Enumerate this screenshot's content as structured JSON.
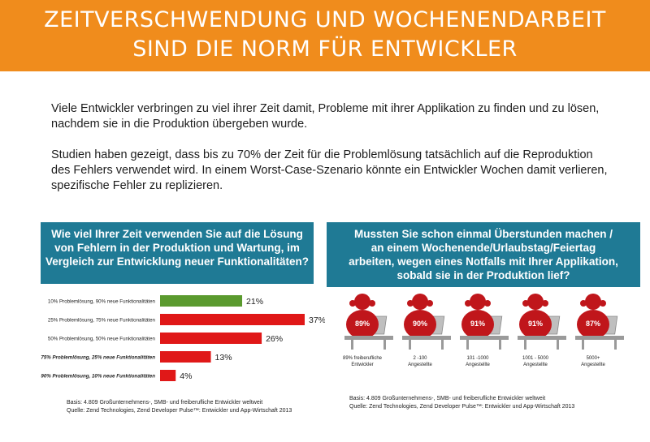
{
  "header": {
    "title_line1": "ZEITVERSCHWENDUNG UND WOCHENENDARBEIT",
    "title_line2": "SIND DIE NORM FÜR ENTWICKLER",
    "color": "#f08c1c"
  },
  "intro": {
    "p1_line1": "Viele Entwickler verbringen zu viel ihrer Zeit damit, Probleme mit ihrer Applikation zu finden und zu lösen,",
    "p1_line2": "nachdem sie in die Produktion übergeben wurde.",
    "p2_line1": "Studien haben gezeigt, dass bis zu 70% der Zeit für die Problemlösung tatsächlich auf die Reproduktion",
    "p2_line2": "des Fehlers verwendet wird. In einem Worst-Case-Szenario könnte ein Entwickler Wochen damit verlieren,",
    "p2_line3": "spezifische Fehler zu replizieren."
  },
  "question1": {
    "line1": "Wie viel Ihrer Zeit verwenden Sie auf die Lösung",
    "line2": "von Fehlern in der Produktion und Wartung, im",
    "line3": "Vergleich zur Entwicklung neuer Funktionalitäten?"
  },
  "question2": {
    "line1": "Mussten Sie schon einmal Überstunden machen /",
    "line2": "an einem Wochenende/Urlaubstag/Feiertag",
    "line3": "arbeiten, wegen eines Notfalls mit Ihrer Applikation,",
    "line4": "sobald sie in der Produktion lief?"
  },
  "source1": {
    "line1": "Basis: 4.809 Großunternehmens-, SMB- und freiberufliche Entwickler weltweit",
    "line2": "Quelle: Zend Technologies, Zend Developer Pulse™: Entwickler und App-Wirtschaft 2013"
  },
  "source2": {
    "line1": "Basis: 4.809 Großunternehmens-, SMB- und freiberufliche Entwickler weltweit",
    "line2": "Quelle: Zend Technologies, Zend Developer Pulse™: Entwickler und App-Wirtschaft 2013"
  },
  "chart_data": [
    {
      "type": "bar",
      "orientation": "horizontal",
      "categories": [
        "10% Problemlösung, 90% neue Funktionalitäten",
        "25% Problemlösung, 75% neue Funktionalitäten",
        "50% Problemlösung, 50% neue Funktionalitäten",
        "75% Problemlösung, 25% neue Funktionalitäten",
        "90% Problemlösung, 10% neue Funktionalitäten"
      ],
      "values": [
        21,
        37,
        26,
        13,
        4
      ],
      "value_labels": [
        "21%",
        "37%",
        "26%",
        "13%",
        "4%"
      ],
      "bar_colors": [
        "#5a9a2e",
        "#e01818",
        "#e01818",
        "#e01818",
        "#e01818"
      ],
      "xlim": [
        0,
        37
      ],
      "grid": false
    },
    {
      "type": "pictogram",
      "categories": [
        {
          "line1": "89% freiberufliche",
          "line2": "Entwickler"
        },
        {
          "line1": "2 -100",
          "line2": "Angestellte"
        },
        {
          "line1": "101 -1000",
          "line2": "Angestellte"
        },
        {
          "line1": "1001 - 5000",
          "line2": "Angestellte"
        },
        {
          "line1": "5000+",
          "line2": "Angestellte"
        }
      ],
      "values": [
        89,
        90,
        91,
        91,
        87
      ],
      "value_labels": [
        "89%",
        "90%",
        "91%",
        "91%",
        "87%"
      ],
      "icon": "stressed-developer-icon",
      "icon_color": "#c0161b"
    }
  ]
}
